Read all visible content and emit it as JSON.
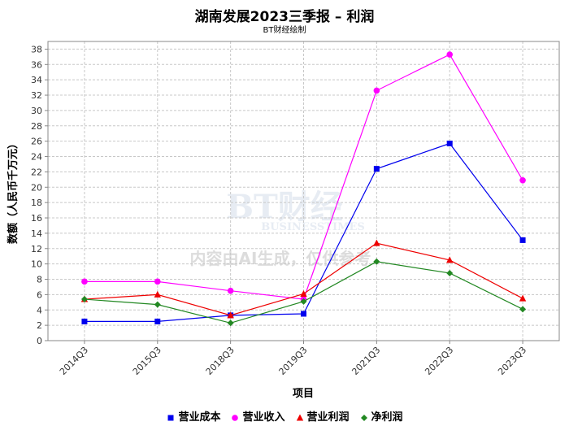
{
  "chart_data": {
    "type": "line",
    "title": "湖南发展2023三季报 – 利润",
    "subtitle": "BT财经绘制",
    "xlabel": "项目",
    "ylabel": "数额（人民币千万元）",
    "ylim": [
      0,
      39
    ],
    "yticks": [
      0,
      2,
      4,
      6,
      8,
      10,
      12,
      14,
      16,
      18,
      20,
      22,
      24,
      26,
      28,
      30,
      32,
      34,
      36,
      38
    ],
    "grid": true,
    "legend_position": "bottom",
    "categories": [
      "2014Q3",
      "2015Q3",
      "2018Q3",
      "2019Q3",
      "2021Q3",
      "2022Q3",
      "2023Q3"
    ],
    "series": [
      {
        "name": "营业成本",
        "color": "#0000ee",
        "marker": "square",
        "values": [
          2.5,
          2.5,
          3.3,
          3.5,
          22.4,
          25.7,
          13.1
        ]
      },
      {
        "name": "营业收入",
        "color": "#ff00ff",
        "marker": "circle",
        "values": [
          7.7,
          7.7,
          6.5,
          5.4,
          32.6,
          37.3,
          20.9
        ]
      },
      {
        "name": "营业利润",
        "color": "#ee0000",
        "marker": "triangle",
        "values": [
          5.4,
          6.0,
          3.3,
          6.1,
          12.7,
          10.5,
          5.5
        ]
      },
      {
        "name": "净利润",
        "color": "#228822",
        "marker": "diamond",
        "values": [
          5.4,
          4.7,
          2.3,
          5.1,
          10.3,
          8.8,
          4.1
        ]
      }
    ],
    "watermark": {
      "line1": "BT财经",
      "line2": "BUSINESSTIMES",
      "notice": "内容由AI生成，仅供参考"
    }
  }
}
